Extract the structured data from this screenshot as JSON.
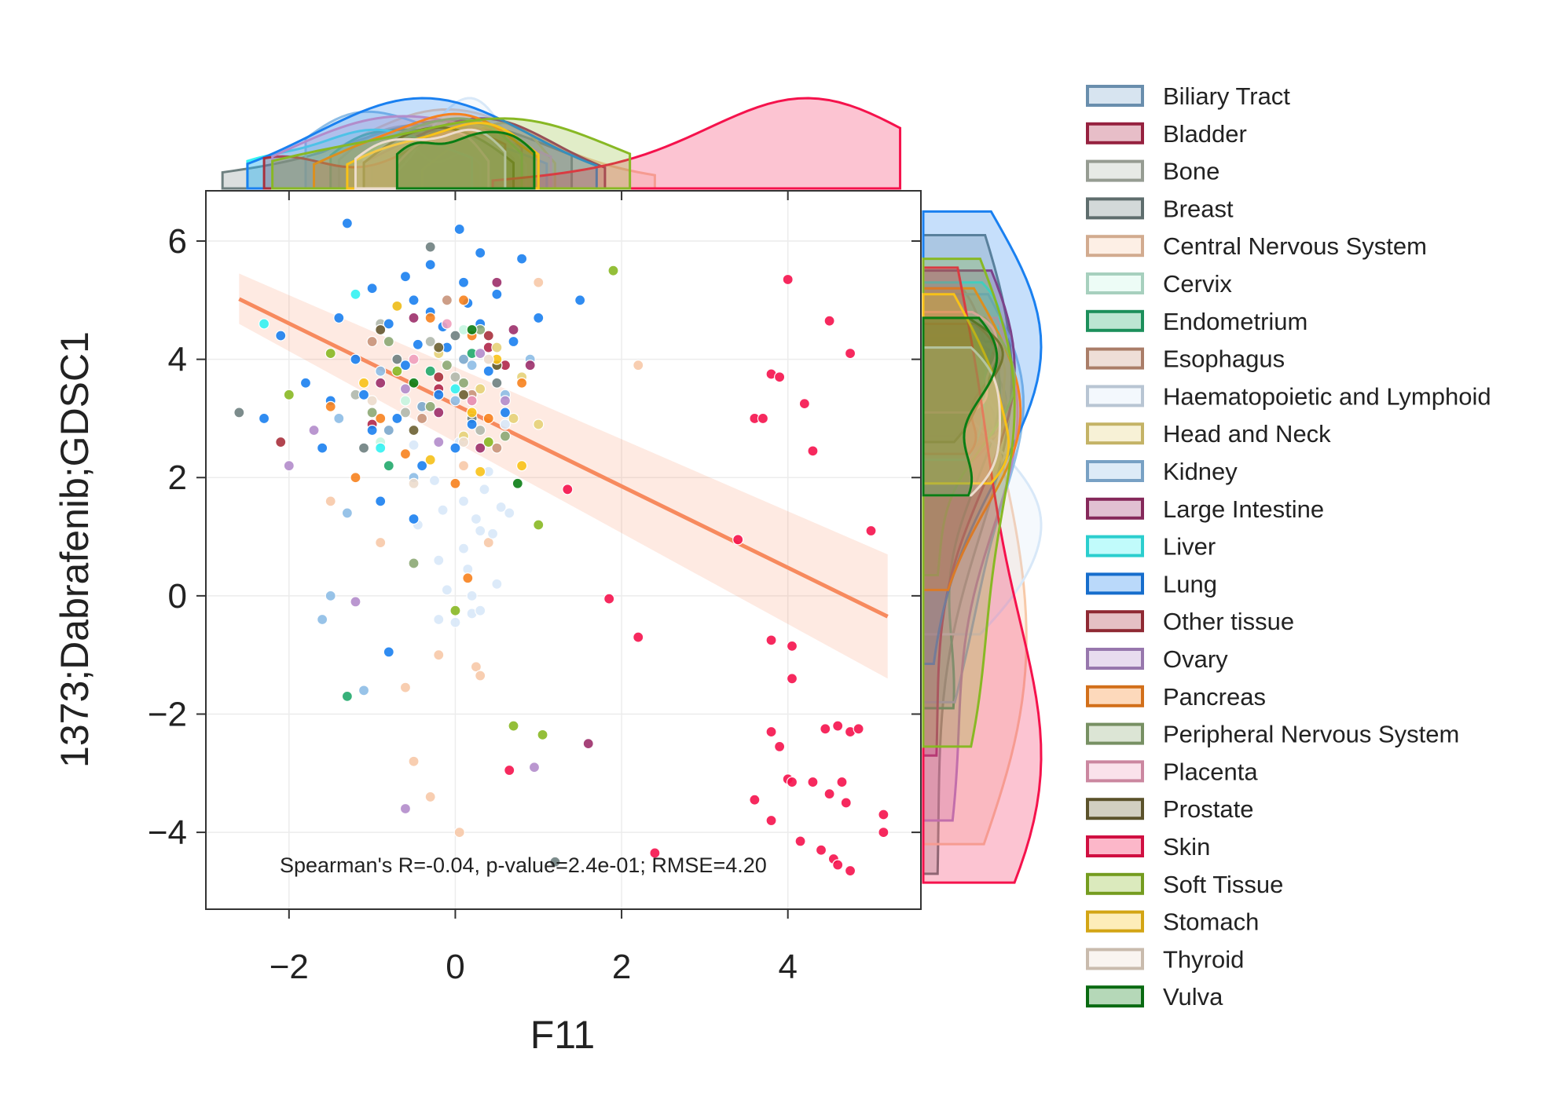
{
  "chart_data": {
    "type": "scatter",
    "title": "",
    "xlabel": "F11",
    "ylabel": "1373;Dabrafenib;GDSC1",
    "xlim": [
      -3.0,
      5.6
    ],
    "ylim": [
      -5.3,
      6.85
    ],
    "xticks": [
      -2,
      0,
      2,
      4
    ],
    "yticks": [
      -4,
      -2,
      0,
      2,
      4,
      6
    ],
    "xtick_labels": [
      "−2",
      "0",
      "2",
      "4"
    ],
    "ytick_labels": [
      "−4",
      "−2",
      "0",
      "2",
      "4",
      "6"
    ],
    "grid": true,
    "legend_position": "outside-right",
    "annotation": "Spearman's R=-0.04, p-value=2.4e-01; RMSE=4.20",
    "regression": {
      "x": [
        -2.6,
        5.2
      ],
      "y": [
        5.02,
        -0.35
      ],
      "ci_upper": [
        5.45,
        0.7
      ],
      "ci_lower": [
        4.6,
        -1.4
      ],
      "color": "#f78a5e"
    },
    "series": [
      {
        "name": "Biliary Tract",
        "color": "#7ba7cc",
        "points": [
          [
            -0.4,
            3.2
          ],
          [
            0.1,
            4.0
          ],
          [
            -0.8,
            2.8
          ]
        ]
      },
      {
        "name": "Bladder",
        "color": "#b0274a",
        "points": [
          [
            -0.2,
            3.5
          ],
          [
            0.4,
            4.2
          ],
          [
            -1.0,
            2.9
          ],
          [
            0.6,
            3.9
          ]
        ]
      },
      {
        "name": "Bone",
        "color": "#b0b8ac",
        "points": [
          [
            -0.6,
            3.1
          ],
          [
            -0.3,
            4.3
          ],
          [
            0.0,
            3.7
          ],
          [
            -1.2,
            3.4
          ],
          [
            0.3,
            2.8
          ],
          [
            -0.9,
            4.6
          ]
        ]
      },
      {
        "name": "Breast",
        "color": "#6e8080",
        "points": [
          [
            -2.6,
            3.1
          ],
          [
            -0.3,
            5.9
          ],
          [
            0.2,
            3.0
          ],
          [
            -0.7,
            4.0
          ],
          [
            0.5,
            3.6
          ],
          [
            1.2,
            -4.5
          ],
          [
            -1.1,
            2.5
          ],
          [
            0.0,
            4.4
          ]
        ]
      },
      {
        "name": "Central Nervous System",
        "color": "#f7c9a8",
        "points": [
          [
            -0.2,
            -1.0
          ],
          [
            0.25,
            -1.2
          ],
          [
            0.3,
            -1.35
          ],
          [
            -0.6,
            -1.55
          ],
          [
            -0.5,
            -2.8
          ],
          [
            -0.3,
            -3.4
          ],
          [
            0.05,
            -4.0
          ],
          [
            2.2,
            3.9
          ],
          [
            1.0,
            5.3
          ],
          [
            -0.9,
            0.9
          ],
          [
            0.4,
            0.9
          ],
          [
            -1.5,
            1.6
          ],
          [
            0.1,
            2.2
          ]
        ]
      },
      {
        "name": "Cervix",
        "color": "#c5f5e0",
        "points": [
          [
            -0.6,
            3.3
          ],
          [
            0.1,
            4.5
          ],
          [
            -0.9,
            2.6
          ]
        ]
      },
      {
        "name": "Endometrium",
        "color": "#21a86b",
        "points": [
          [
            -1.3,
            -1.7
          ],
          [
            -0.3,
            3.8
          ],
          [
            0.2,
            4.1
          ],
          [
            -0.8,
            2.2
          ]
        ]
      },
      {
        "name": "Esophagus",
        "color": "#c8937a",
        "points": [
          [
            -0.4,
            3.0
          ],
          [
            0.2,
            3.4
          ],
          [
            -1.0,
            4.3
          ],
          [
            0.5,
            2.5
          ],
          [
            -0.1,
            5.0
          ]
        ]
      },
      {
        "name": "Haematopoietic and Lymphoid",
        "color": "#d8e8f8",
        "points": [
          [
            -0.2,
            0.6
          ],
          [
            0.1,
            0.8
          ],
          [
            0.3,
            1.1
          ],
          [
            -0.1,
            0.1
          ],
          [
            0.2,
            -0.3
          ],
          [
            0.5,
            0.2
          ],
          [
            0.0,
            -0.45
          ],
          [
            -0.2,
            -0.4
          ],
          [
            0.35,
            1.8
          ],
          [
            0.1,
            1.6
          ],
          [
            -0.3,
            2.3
          ],
          [
            0.25,
            1.3
          ],
          [
            0.45,
            1.05
          ],
          [
            0.6,
            2.9
          ],
          [
            -0.45,
            1.2
          ],
          [
            0.05,
            2.6
          ],
          [
            0.55,
            1.5
          ],
          [
            -0.25,
            1.95
          ],
          [
            0.15,
            0.45
          ],
          [
            0.3,
            -0.25
          ],
          [
            -0.15,
            1.45
          ],
          [
            0.4,
            2.1
          ],
          [
            0.65,
            1.4
          ],
          [
            -0.5,
            2.55
          ],
          [
            0.2,
            0.0
          ]
        ]
      },
      {
        "name": "Head and Neck",
        "color": "#e6d278",
        "points": [
          [
            0.3,
            3.5
          ],
          [
            0.7,
            3.0
          ],
          [
            0.5,
            4.2
          ],
          [
            1.0,
            2.9
          ],
          [
            0.1,
            2.7
          ],
          [
            0.8,
            3.7
          ],
          [
            -0.2,
            4.1
          ]
        ]
      },
      {
        "name": "Kidney",
        "color": "#8dbde6",
        "points": [
          [
            -1.6,
            -0.4
          ],
          [
            -1.5,
            0.0
          ],
          [
            -1.1,
            -1.6
          ],
          [
            -1.3,
            1.4
          ],
          [
            -0.9,
            3.8
          ],
          [
            0.0,
            3.3
          ],
          [
            -0.5,
            2.0
          ],
          [
            0.2,
            3.9
          ],
          [
            -0.7,
            4.9
          ],
          [
            0.6,
            3.4
          ],
          [
            -1.4,
            3.0
          ],
          [
            0.9,
            4.0
          ]
        ]
      },
      {
        "name": "Large Intestine",
        "color": "#9c2f6a",
        "points": [
          [
            1.6,
            -2.5
          ],
          [
            -0.9,
            3.6
          ],
          [
            0.5,
            5.3
          ],
          [
            0.9,
            3.9
          ],
          [
            -0.2,
            3.1
          ],
          [
            0.3,
            2.5
          ],
          [
            -0.5,
            4.7
          ],
          [
            0.7,
            4.5
          ],
          [
            0.2,
            3.3
          ]
        ]
      },
      {
        "name": "Liver",
        "color": "#33f2f2",
        "points": [
          [
            -2.3,
            4.6
          ],
          [
            -1.2,
            5.1
          ],
          [
            -0.9,
            2.5
          ],
          [
            0.0,
            3.5
          ]
        ]
      },
      {
        "name": "Lung",
        "color": "#1a80f0",
        "points": [
          [
            -1.3,
            6.3
          ],
          [
            0.05,
            6.2
          ],
          [
            -0.8,
            -0.95
          ],
          [
            -2.3,
            3.0
          ],
          [
            -1.0,
            5.2
          ],
          [
            -0.8,
            4.6
          ],
          [
            -0.5,
            5.0
          ],
          [
            -0.3,
            4.8
          ],
          [
            -0.1,
            4.2
          ],
          [
            0.1,
            5.3
          ],
          [
            0.3,
            4.6
          ],
          [
            0.5,
            5.1
          ],
          [
            0.7,
            4.3
          ],
          [
            -0.6,
            3.9
          ],
          [
            -1.2,
            4.0
          ],
          [
            -1.5,
            3.3
          ],
          [
            -1.8,
            3.6
          ],
          [
            -0.7,
            3.0
          ],
          [
            -0.2,
            3.4
          ],
          [
            0.4,
            3.8
          ],
          [
            0.2,
            2.9
          ],
          [
            -1.0,
            2.8
          ],
          [
            -0.4,
            2.2
          ],
          [
            0.0,
            2.5
          ],
          [
            -1.6,
            2.5
          ],
          [
            -0.9,
            1.6
          ],
          [
            -0.5,
            1.3
          ],
          [
            1.5,
            5.0
          ],
          [
            -2.1,
            4.4
          ],
          [
            -1.4,
            4.7
          ],
          [
            -0.3,
            5.6
          ],
          [
            0.3,
            5.8
          ],
          [
            -0.6,
            5.4
          ],
          [
            0.8,
            5.7
          ],
          [
            1.0,
            4.7
          ],
          [
            -1.1,
            3.4
          ],
          [
            0.6,
            3.1
          ],
          [
            -0.15,
            4.55
          ],
          [
            -0.45,
            4.25
          ],
          [
            0.15,
            4.95
          ]
        ]
      },
      {
        "name": "Other tissue",
        "color": "#a8303c",
        "points": [
          [
            -2.1,
            2.6
          ],
          [
            -0.2,
            3.7
          ],
          [
            0.4,
            4.4
          ]
        ]
      },
      {
        "name": "Ovary",
        "color": "#b28ccb",
        "points": [
          [
            -1.2,
            -0.1
          ],
          [
            0.95,
            -2.9
          ],
          [
            -0.6,
            -3.6
          ],
          [
            -1.7,
            2.8
          ],
          [
            -0.6,
            3.5
          ],
          [
            0.3,
            4.1
          ],
          [
            -0.9,
            4.5
          ],
          [
            -0.2,
            2.6
          ],
          [
            -2.0,
            2.2
          ],
          [
            0.6,
            3.3
          ]
        ]
      },
      {
        "name": "Pancreas",
        "color": "#f7821e",
        "points": [
          [
            0.15,
            0.3
          ],
          [
            -1.5,
            3.2
          ],
          [
            -0.9,
            3.0
          ],
          [
            -0.3,
            4.7
          ],
          [
            0.1,
            5.0
          ],
          [
            -0.6,
            2.4
          ],
          [
            0.4,
            3.0
          ],
          [
            0.8,
            3.6
          ],
          [
            0.2,
            4.4
          ],
          [
            -1.2,
            2.0
          ],
          [
            0.0,
            1.9
          ]
        ]
      },
      {
        "name": "Peripheral Nervous System",
        "color": "#8ca974",
        "points": [
          [
            -0.5,
            0.55
          ],
          [
            -0.1,
            3.9
          ],
          [
            0.3,
            4.5
          ],
          [
            -0.8,
            4.3
          ],
          [
            0.6,
            2.7
          ],
          [
            -0.3,
            3.2
          ],
          [
            0.1,
            3.6
          ],
          [
            -1.0,
            3.1
          ],
          [
            0.5,
            3.9
          ]
        ]
      },
      {
        "name": "Placenta",
        "color": "#ef9fbc",
        "points": [
          [
            -0.5,
            4.0
          ],
          [
            0.2,
            3.3
          ],
          [
            -0.1,
            4.6
          ]
        ]
      },
      {
        "name": "Prostate",
        "color": "#6b6032",
        "points": [
          [
            -0.9,
            4.5
          ],
          [
            0.1,
            3.4
          ],
          [
            -0.5,
            2.8
          ],
          [
            0.5,
            3.9
          ],
          [
            -0.2,
            4.2
          ]
        ]
      },
      {
        "name": "Skin",
        "color": "#f5124c",
        "points": [
          [
            4.0,
            5.35
          ],
          [
            4.5,
            4.65
          ],
          [
            4.75,
            4.1
          ],
          [
            3.8,
            3.75
          ],
          [
            3.9,
            3.7
          ],
          [
            4.2,
            3.25
          ],
          [
            3.6,
            3.0
          ],
          [
            3.7,
            3.0
          ],
          [
            4.3,
            2.45
          ],
          [
            5.0,
            1.1
          ],
          [
            3.4,
            0.95
          ],
          [
            1.35,
            1.8
          ],
          [
            1.85,
            -0.05
          ],
          [
            2.2,
            -0.7
          ],
          [
            3.8,
            -0.75
          ],
          [
            4.05,
            -0.85
          ],
          [
            4.05,
            -1.4
          ],
          [
            3.8,
            -2.3
          ],
          [
            3.9,
            -2.55
          ],
          [
            4.45,
            -2.25
          ],
          [
            4.6,
            -2.2
          ],
          [
            4.75,
            -2.3
          ],
          [
            4.85,
            -2.25
          ],
          [
            0.65,
            -2.95
          ],
          [
            4.0,
            -3.1
          ],
          [
            4.05,
            -3.15
          ],
          [
            4.3,
            -3.15
          ],
          [
            4.65,
            -3.15
          ],
          [
            3.6,
            -3.45
          ],
          [
            4.5,
            -3.35
          ],
          [
            4.7,
            -3.5
          ],
          [
            5.15,
            -3.7
          ],
          [
            3.8,
            -3.8
          ],
          [
            5.15,
            -4.0
          ],
          [
            4.15,
            -4.15
          ],
          [
            4.4,
            -4.3
          ],
          [
            4.55,
            -4.45
          ],
          [
            4.6,
            -4.55
          ],
          [
            4.75,
            -4.65
          ],
          [
            2.4,
            -4.35
          ]
        ]
      },
      {
        "name": "Soft Tissue",
        "color": "#88b824",
        "points": [
          [
            1.9,
            5.5
          ],
          [
            0.7,
            -2.2
          ],
          [
            1.05,
            -2.35
          ],
          [
            0.0,
            -0.25
          ],
          [
            1.0,
            1.2
          ],
          [
            -2.0,
            3.4
          ],
          [
            -0.7,
            3.8
          ],
          [
            0.4,
            2.6
          ],
          [
            -1.5,
            4.1
          ]
        ]
      },
      {
        "name": "Stomach",
        "color": "#f8c218",
        "points": [
          [
            0.3,
            2.1
          ],
          [
            -0.3,
            2.3
          ],
          [
            0.8,
            2.2
          ],
          [
            -0.7,
            4.9
          ],
          [
            0.5,
            4.0
          ],
          [
            -1.1,
            3.6
          ],
          [
            0.2,
            3.1
          ]
        ]
      },
      {
        "name": "Thyroid",
        "color": "#ecdccc",
        "points": [
          [
            -0.5,
            1.9
          ],
          [
            0.1,
            2.6
          ],
          [
            -1.0,
            3.3
          ],
          [
            0.4,
            4.0
          ]
        ]
      },
      {
        "name": "Vulva",
        "color": "#0a7d14",
        "points": [
          [
            0.75,
            1.9
          ],
          [
            -0.5,
            3.6
          ],
          [
            0.2,
            4.5
          ]
        ]
      }
    ]
  }
}
